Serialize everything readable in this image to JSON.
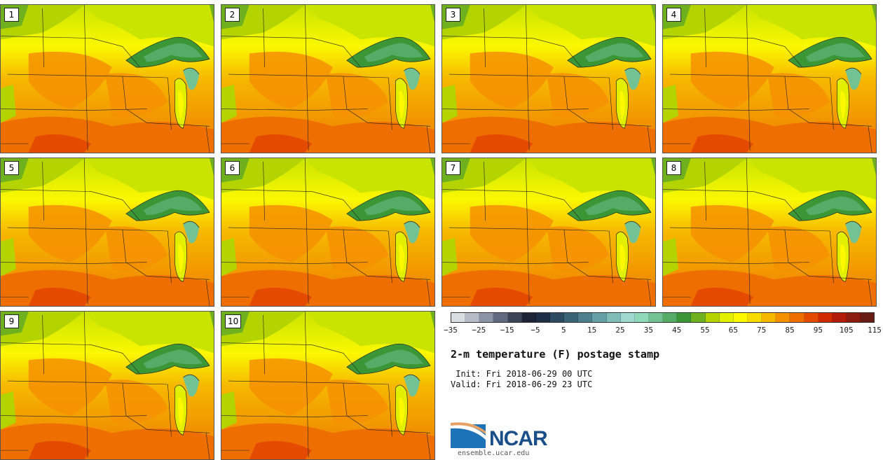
{
  "members": [
    "1",
    "2",
    "3",
    "4",
    "5",
    "6",
    "7",
    "8",
    "9",
    "10"
  ],
  "colorbar": {
    "colors": [
      "#d9dde4",
      "#b5bcc8",
      "#8a94a6",
      "#5f6a80",
      "#3c4558",
      "#1c2436",
      "#1e2e44",
      "#2c4a60",
      "#3b6377",
      "#4e7f8d",
      "#66a0a6",
      "#80bdb8",
      "#9ed8cf",
      "#8fd8b8",
      "#73c293",
      "#54ac67",
      "#3b9736",
      "#6fb01e",
      "#b3d400",
      "#e3ef00",
      "#fbf800",
      "#f8dc00",
      "#f6b800",
      "#f49100",
      "#ee6f00",
      "#e44b00",
      "#cf2a00",
      "#b31c0a",
      "#8c1b10",
      "#691c14"
    ],
    "tick_labels": [
      "−35",
      "−25",
      "−15",
      "−5",
      "5",
      "15",
      "25",
      "35",
      "45",
      "55",
      "65",
      "75",
      "85",
      "95",
      "105",
      "115"
    ]
  },
  "title": "2-m temperature (F) postage stamp",
  "init_line": " Init: Fri 2018-06-29 00 UTC",
  "valid_line": "Valid: Fri 2018-06-29 23 UTC",
  "logo_text": "NCAR",
  "site_url": "ensemble.ucar.edu"
}
